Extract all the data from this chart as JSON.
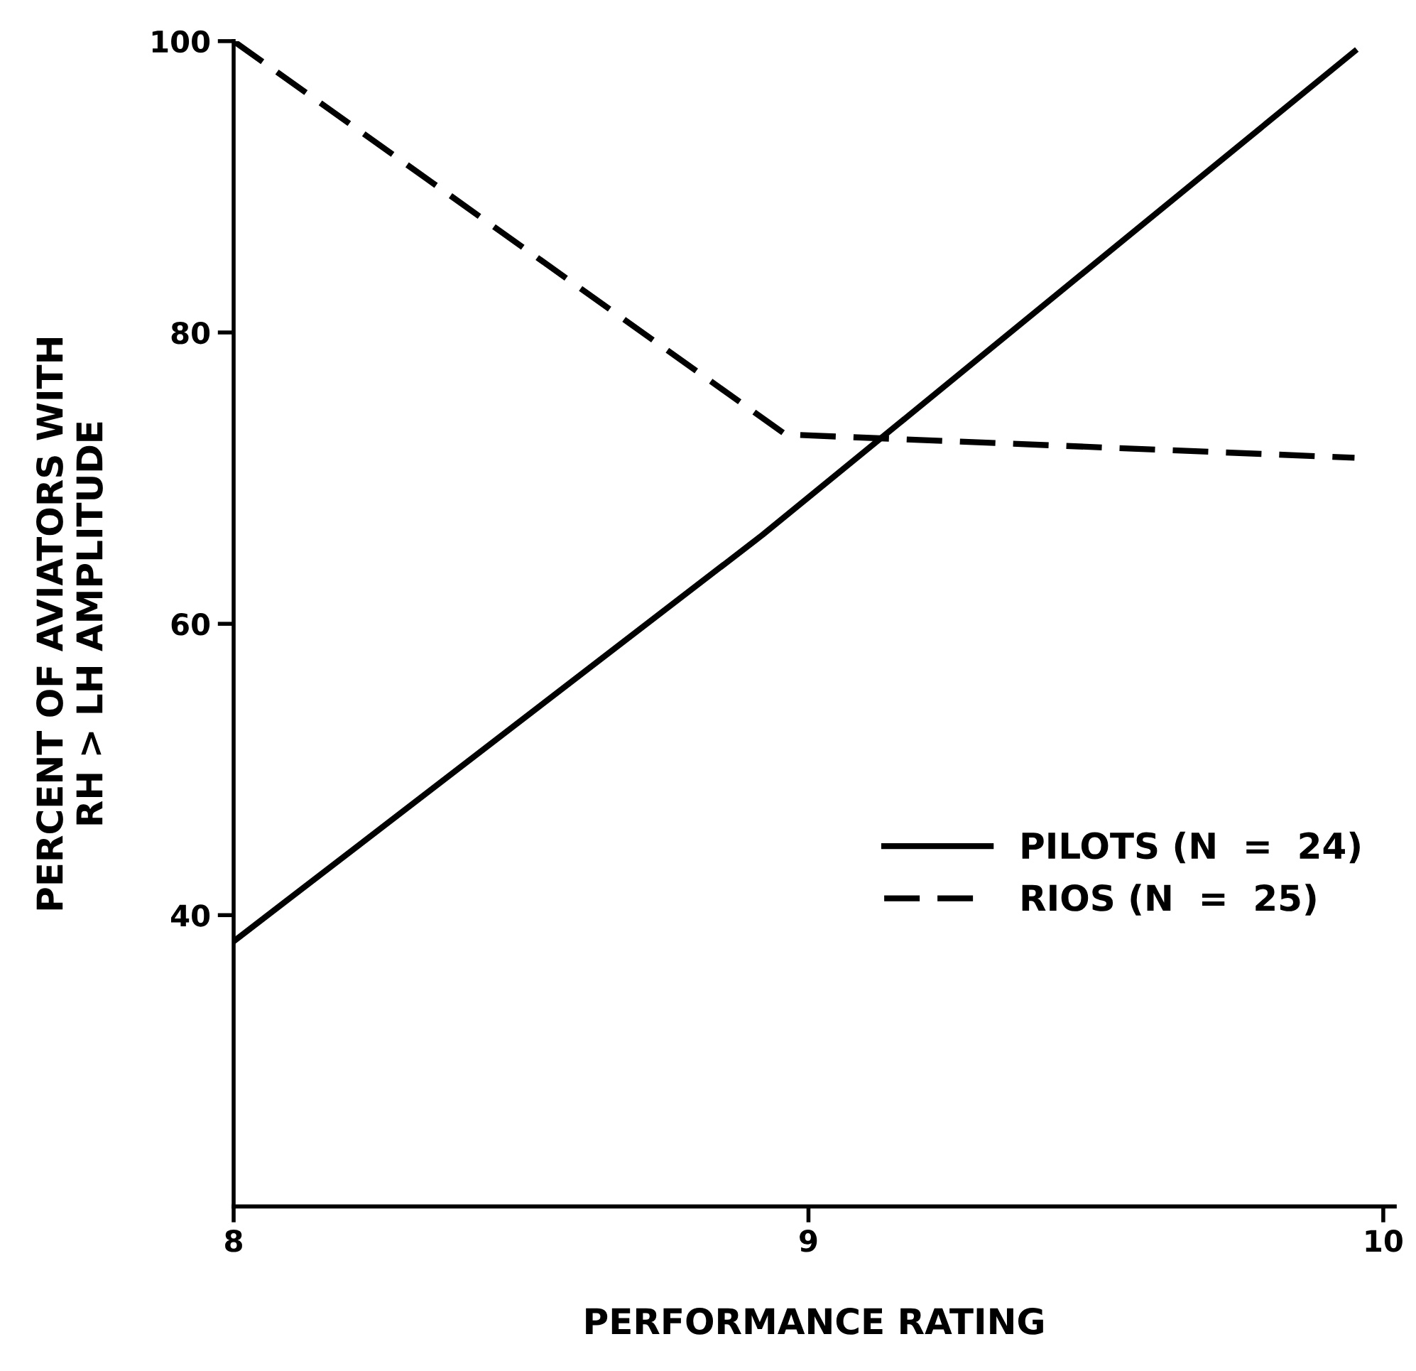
{
  "chart_data": {
    "type": "line",
    "xlabel": "PERFORMANCE RATING",
    "ylabel": "PERCENT OF AVIATORS WITH\nRH > LH AMPLITUDE",
    "xlim": [
      8,
      10.02
    ],
    "xticks": [
      8,
      9,
      10
    ],
    "ylim": [
      20,
      100
    ],
    "yticks": [
      40,
      60,
      80,
      100
    ],
    "legend": "lower right",
    "grid": false,
    "series": [
      {
        "name": "PILOTS (N  =  24)",
        "color": "#000000",
        "line_style": "solid",
        "x": [
          8,
          8.92,
          9.95
        ],
        "values": [
          38.2,
          66.1,
          99.3
        ]
      },
      {
        "name": "RIOS (N  =  25)",
        "color": "#000000",
        "line_style": "dashed",
        "x": [
          8,
          8.96,
          9.95
        ],
        "values": [
          100,
          73.0,
          71.4
        ]
      }
    ]
  }
}
